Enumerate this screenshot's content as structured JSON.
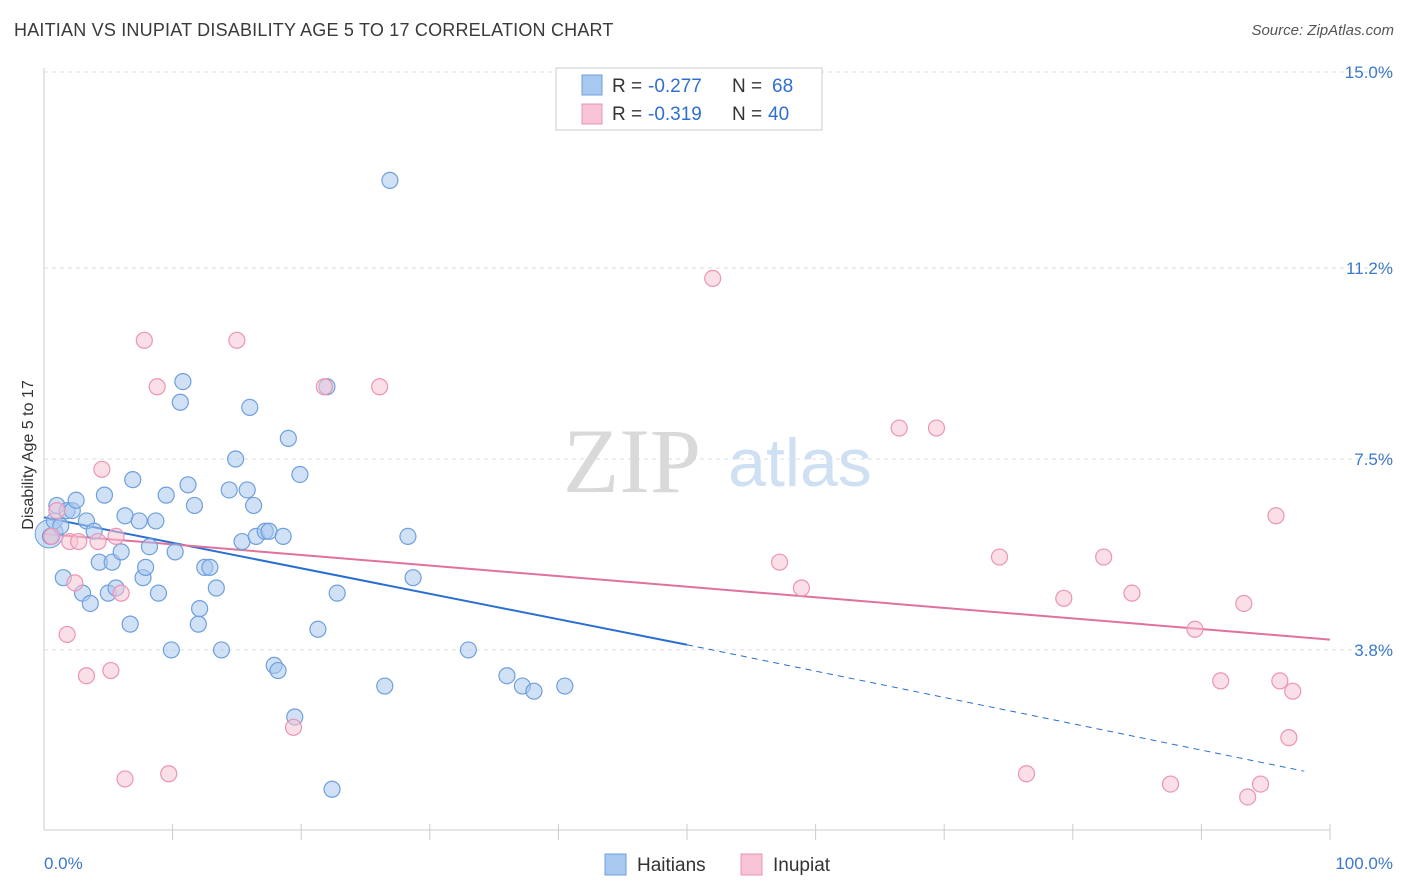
{
  "header": {
    "title": "HAITIAN VS INUPIAT DISABILITY AGE 5 TO 17 CORRELATION CHART",
    "source": "Source: ZipAtlas.com"
  },
  "watermark": {
    "zip": "ZIP",
    "atlas": "atlas"
  },
  "colors": {
    "haitians_fill": "#a9c8ef",
    "haitians_stroke": "#6f9fdc",
    "haitians_line": "#2a6fd0",
    "inupiat_fill": "#f6c4d4",
    "inupiat_stroke": "#ec94b3",
    "inupiat_line": "#e0719c",
    "tick_label": "#3b78c9",
    "grid": "#dddddd"
  },
  "legend": {
    "rows": [
      {
        "r_label": "R =",
        "r_value": "-0.277",
        "n_label": "N =",
        "n_value": "68"
      },
      {
        "r_label": "R =",
        "r_value": "-0.319",
        "n_label": "N =",
        "n_value": "40"
      }
    ]
  },
  "chart_data": {
    "type": "scatter",
    "title": "HAITIAN VS INUPIAT DISABILITY AGE 5 TO 17 CORRELATION CHART",
    "xlabel": "",
    "ylabel": "Disability Age 5 to 17",
    "xlim": [
      0,
      100
    ],
    "ylim": [
      0,
      15.7
    ],
    "x_tick_labels": [
      "0.0%",
      "100.0%"
    ],
    "y_ticks": [
      3.8,
      7.5,
      11.2,
      15.0
    ],
    "y_tick_labels": [
      "3.8%",
      "7.5%",
      "11.2%",
      "15.0%"
    ],
    "grid": "horizontal dashed",
    "legend_position": "top-center and bottom",
    "series": [
      {
        "name": "Haitians",
        "r": -0.277,
        "n": 68,
        "trend": {
          "x0": 0,
          "y0": 6.37,
          "x1": 50,
          "y1": 3.9,
          "dashed_to_x": 98,
          "dashed_to_y": 1.45
        },
        "points": [
          [
            0.5,
            6.0
          ],
          [
            0.8,
            6.3
          ],
          [
            1.0,
            6.6
          ],
          [
            1.3,
            6.2
          ],
          [
            1.5,
            5.2
          ],
          [
            1.8,
            6.5
          ],
          [
            2.2,
            6.5
          ],
          [
            2.5,
            6.7
          ],
          [
            3.0,
            4.9
          ],
          [
            3.3,
            6.3
          ],
          [
            3.6,
            4.7
          ],
          [
            3.9,
            6.1
          ],
          [
            4.3,
            5.5
          ],
          [
            4.7,
            6.8
          ],
          [
            5.0,
            4.9
          ],
          [
            5.3,
            5.5
          ],
          [
            5.6,
            5.0
          ],
          [
            6.0,
            5.7
          ],
          [
            6.3,
            6.4
          ],
          [
            6.7,
            4.3
          ],
          [
            6.9,
            7.1
          ],
          [
            7.4,
            6.3
          ],
          [
            7.7,
            5.2
          ],
          [
            7.9,
            5.4
          ],
          [
            8.2,
            5.8
          ],
          [
            8.7,
            6.3
          ],
          [
            8.9,
            4.9
          ],
          [
            9.5,
            6.8
          ],
          [
            9.9,
            3.8
          ],
          [
            10.2,
            5.7
          ],
          [
            10.6,
            8.6
          ],
          [
            10.8,
            9.0
          ],
          [
            11.2,
            7.0
          ],
          [
            11.7,
            6.6
          ],
          [
            12.0,
            4.3
          ],
          [
            12.1,
            4.6
          ],
          [
            12.5,
            5.4
          ],
          [
            12.9,
            5.4
          ],
          [
            13.4,
            5.0
          ],
          [
            13.8,
            3.8
          ],
          [
            14.4,
            6.9
          ],
          [
            14.9,
            7.5
          ],
          [
            15.4,
            5.9
          ],
          [
            15.8,
            6.9
          ],
          [
            16.0,
            8.5
          ],
          [
            16.3,
            6.6
          ],
          [
            16.5,
            6.0
          ],
          [
            17.2,
            6.1
          ],
          [
            17.5,
            6.1
          ],
          [
            17.9,
            3.5
          ],
          [
            18.2,
            3.4
          ],
          [
            18.6,
            6.0
          ],
          [
            19.0,
            7.9
          ],
          [
            19.5,
            2.5
          ],
          [
            19.9,
            7.2
          ],
          [
            21.3,
            4.2
          ],
          [
            22.0,
            8.9
          ],
          [
            22.4,
            1.1
          ],
          [
            22.8,
            4.9
          ],
          [
            26.5,
            3.1
          ],
          [
            26.9,
            12.9
          ],
          [
            28.3,
            6.0
          ],
          [
            28.7,
            5.2
          ],
          [
            33.0,
            3.8
          ],
          [
            36.0,
            3.3
          ],
          [
            37.2,
            3.1
          ],
          [
            38.1,
            3.0
          ],
          [
            40.5,
            3.1
          ]
        ]
      },
      {
        "name": "Inupiat",
        "r": -0.319,
        "n": 40,
        "trend": {
          "x0": 0,
          "y0": 6.05,
          "x1": 100,
          "y1": 4.0
        },
        "points": [
          [
            0.6,
            6.0
          ],
          [
            1.0,
            6.5
          ],
          [
            1.8,
            4.1
          ],
          [
            2.0,
            5.9
          ],
          [
            2.4,
            5.1
          ],
          [
            2.7,
            5.9
          ],
          [
            3.3,
            3.3
          ],
          [
            4.2,
            5.9
          ],
          [
            4.5,
            7.3
          ],
          [
            5.2,
            3.4
          ],
          [
            5.6,
            6.0
          ],
          [
            6.0,
            4.9
          ],
          [
            6.3,
            1.3
          ],
          [
            7.8,
            9.8
          ],
          [
            8.8,
            8.9
          ],
          [
            9.7,
            1.4
          ],
          [
            15.0,
            9.8
          ],
          [
            19.4,
            2.3
          ],
          [
            21.8,
            8.9
          ],
          [
            26.1,
            8.9
          ],
          [
            52.0,
            11.0
          ],
          [
            57.2,
            5.5
          ],
          [
            58.9,
            5.0
          ],
          [
            66.5,
            8.1
          ],
          [
            69.4,
            8.1
          ],
          [
            74.3,
            5.6
          ],
          [
            76.4,
            1.4
          ],
          [
            79.3,
            4.8
          ],
          [
            82.4,
            5.6
          ],
          [
            84.6,
            4.9
          ],
          [
            87.6,
            1.2
          ],
          [
            89.5,
            4.2
          ],
          [
            91.5,
            3.2
          ],
          [
            93.3,
            4.7
          ],
          [
            93.6,
            0.95
          ],
          [
            94.6,
            1.2
          ],
          [
            95.8,
            6.4
          ],
          [
            96.1,
            3.2
          ],
          [
            96.8,
            2.1
          ],
          [
            97.1,
            3.0
          ]
        ]
      }
    ]
  }
}
